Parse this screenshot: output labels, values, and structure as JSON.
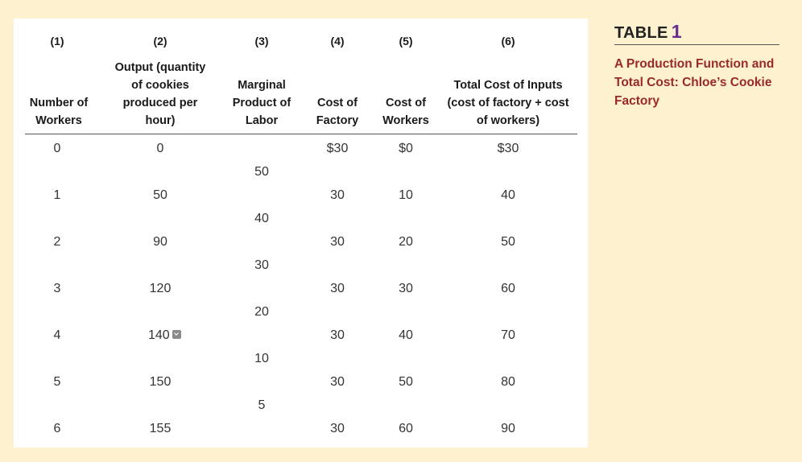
{
  "side": {
    "title_word": "TABLE",
    "title_num": "1",
    "caption": "A Production Function and Total Cost: Chloe’s Cookie Factory"
  },
  "table": {
    "column_numbers": [
      "(1)",
      "(2)",
      "(3)",
      "(4)",
      "(5)",
      "(6)"
    ],
    "headers": [
      "Number of Workers",
      "Output (quantity of cookies produced per hour)",
      "Marginal Product of Labor",
      "Cost of Factory",
      "Cost of Workers",
      "Total Cost of Inputs (cost of factory + cost of workers)"
    ],
    "rows": [
      {
        "workers": "0",
        "output": "0",
        "factory": "$30",
        "workers_cost": "$0",
        "total": "$30"
      },
      {
        "workers": "1",
        "output": "50",
        "factory": "30",
        "workers_cost": "10",
        "total": "40"
      },
      {
        "workers": "2",
        "output": "90",
        "factory": "30",
        "workers_cost": "20",
        "total": "50"
      },
      {
        "workers": "3",
        "output": "120",
        "factory": "30",
        "workers_cost": "30",
        "total": "60"
      },
      {
        "workers": "4",
        "output": "140",
        "factory": "30",
        "workers_cost": "40",
        "total": "70"
      },
      {
        "workers": "5",
        "output": "150",
        "factory": "30",
        "workers_cost": "50",
        "total": "80"
      },
      {
        "workers": "6",
        "output": "155",
        "factory": "30",
        "workers_cost": "60",
        "total": "90"
      }
    ],
    "marginal_products": [
      "50",
      "40",
      "30",
      "20",
      "10",
      "5"
    ]
  }
}
